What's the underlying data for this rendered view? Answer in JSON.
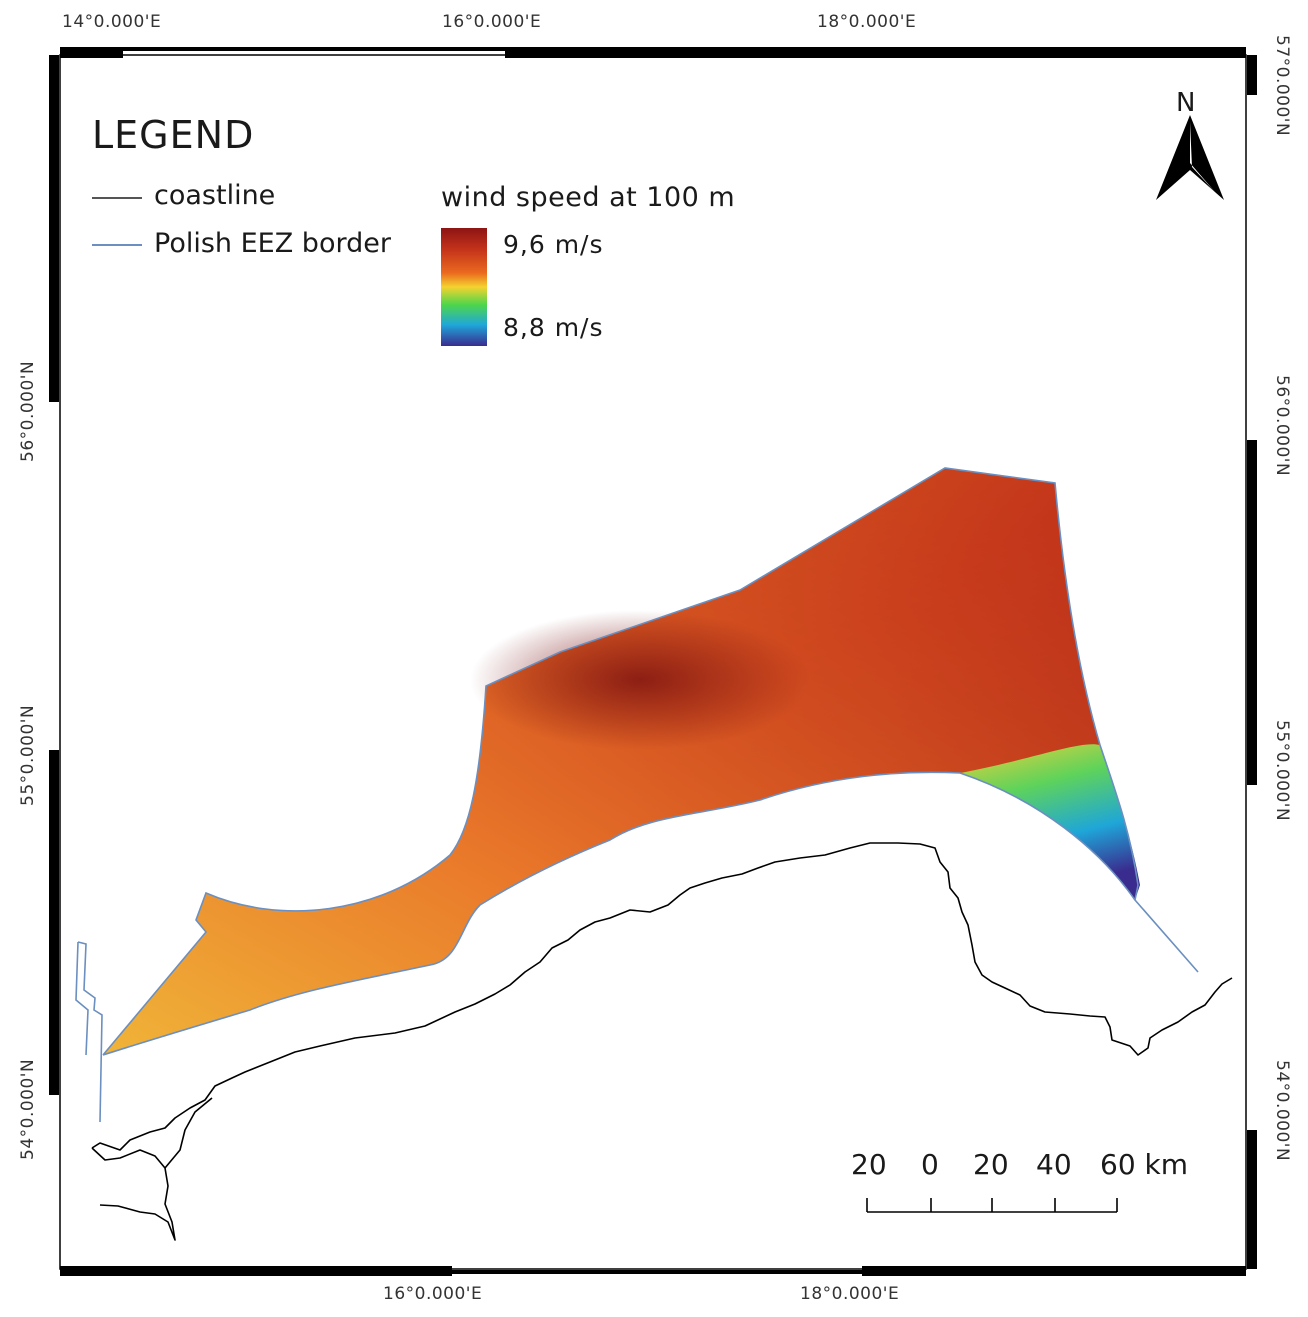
{
  "frame": {
    "top_labels": [
      "14°0.000'E",
      "16°0.000'E",
      "18°0.000'E"
    ],
    "bottom_labels": [
      "16°0.000'E",
      "18°0.000'E"
    ],
    "left_labels": [
      "56°0.000'N",
      "55°0.000'N",
      "54°0.000'N"
    ],
    "right_labels": [
      "57°0.000'N",
      "56°0.000'N",
      "55°0.000'N",
      "54°0.000'N"
    ]
  },
  "legend": {
    "title": "LEGEND",
    "items": [
      {
        "label": "coastline",
        "color": "#555555"
      },
      {
        "label": "Polish EEZ border",
        "color": "#6a8fc0"
      }
    ],
    "ramp": {
      "title": "wind speed at 100 m",
      "max_label": "9,6 m/s",
      "min_label": "8,8 m/s"
    }
  },
  "north_arrow": {
    "label": "N"
  },
  "scale_bar": {
    "labels": [
      "20",
      "0",
      "20",
      "40",
      "60 km"
    ]
  },
  "colors": {
    "frame": "#000000",
    "eez_border": "#6a8fc0",
    "coastline": "#000000",
    "wind_high": "#8d1414",
    "wind_mid": "#e8641e",
    "wind_low": "#3a2b8e"
  }
}
